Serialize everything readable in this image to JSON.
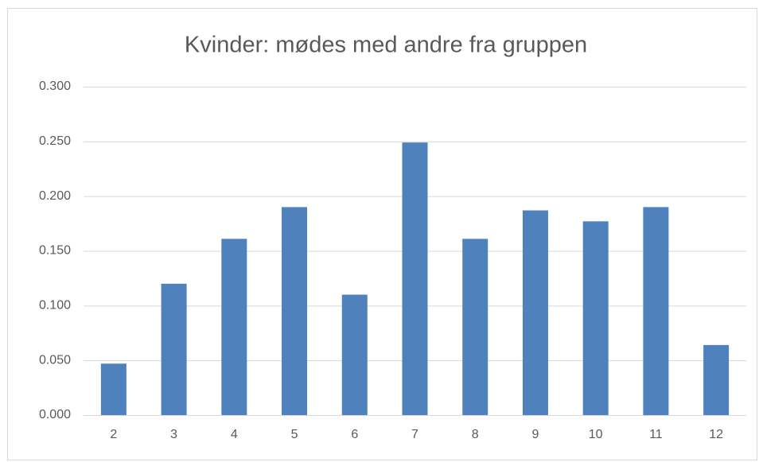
{
  "chart_data": {
    "type": "bar",
    "title": "Kvinder: mødes med andre fra gruppen",
    "categories": [
      "2",
      "3",
      "4",
      "5",
      "6",
      "7",
      "8",
      "9",
      "10",
      "11",
      "12"
    ],
    "values": [
      0.047,
      0.12,
      0.161,
      0.19,
      0.11,
      0.249,
      0.161,
      0.187,
      0.177,
      0.19,
      0.064
    ],
    "color": "#4f81bd",
    "ylim": [
      0,
      0.3
    ],
    "yticks": [
      {
        "value": 0,
        "label": "0.000"
      },
      {
        "value": 0.05,
        "label": "0.050"
      },
      {
        "value": 0.1,
        "label": "0.100"
      },
      {
        "value": 0.15,
        "label": "0.150"
      },
      {
        "value": 0.2,
        "label": "0.200"
      },
      {
        "value": 0.25,
        "label": "0.250"
      },
      {
        "value": 0.3,
        "label": "0.300"
      }
    ],
    "grid": true
  }
}
